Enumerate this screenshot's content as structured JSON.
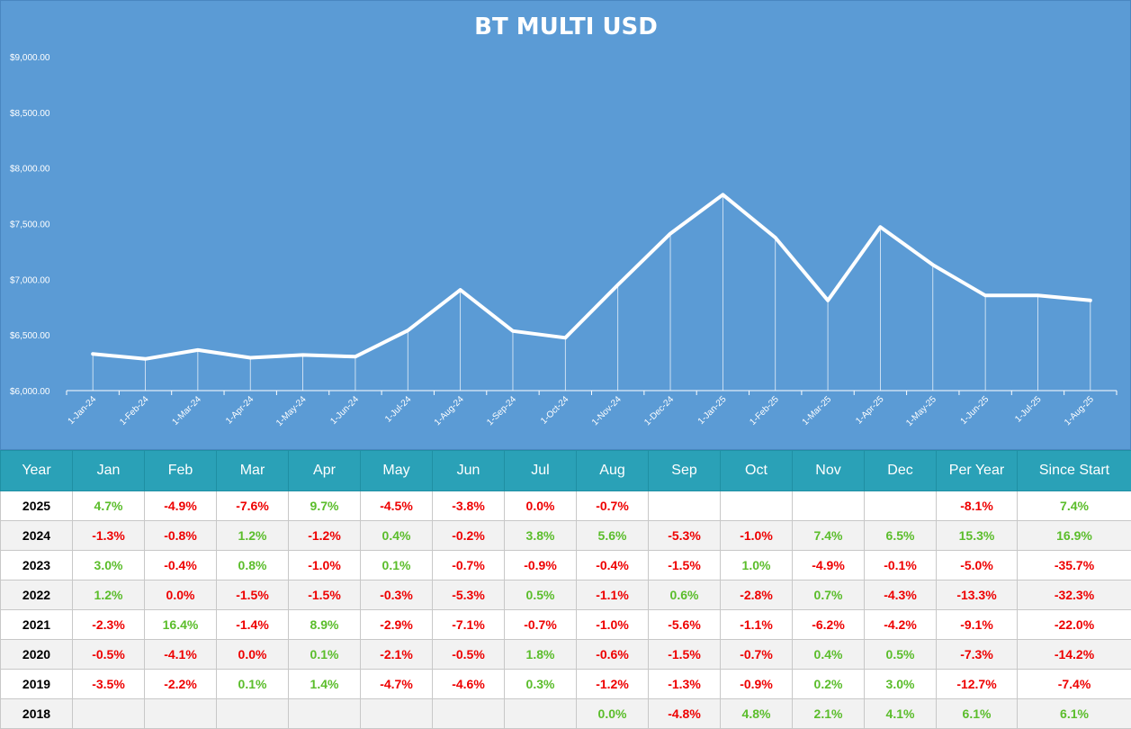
{
  "colors": {
    "panel_background": "#5b9bd5",
    "line": "#ffffff",
    "header_background": "#2aa1b7",
    "positive": "#5bbd2b",
    "negative": "#ee0000"
  },
  "chart_data": {
    "type": "line",
    "title": "BT MULTI USD",
    "xlabel": "",
    "ylabel": "",
    "ylim": [
      6000,
      9000
    ],
    "yticks": [
      "$6,000.00",
      "$6,500.00",
      "$7,000.00",
      "$7,500.00",
      "$8,000.00",
      "$8,500.00",
      "$9,000.00"
    ],
    "ytick_values": [
      6000,
      6500,
      7000,
      7500,
      8000,
      8500,
      9000
    ],
    "x": [
      "1-Jan-24",
      "1-Feb-24",
      "1-Mar-24",
      "1-Apr-24",
      "1-May-24",
      "1-Jun-24",
      "1-Jul-24",
      "1-Aug-24",
      "1-Sep-24",
      "1-Oct-24",
      "1-Nov-24",
      "1-Dec-24",
      "1-Jan-25",
      "1-Feb-25",
      "1-Mar-25",
      "1-Apr-25",
      "1-May-25",
      "1-Jun-25",
      "1-Jul-25",
      "1-Aug-25"
    ],
    "values": [
      6330,
      6285,
      6365,
      6295,
      6320,
      6305,
      6540,
      6905,
      6535,
      6475,
      6950,
      7410,
      7760,
      7375,
      6810,
      7470,
      7130,
      6855,
      6855,
      6810
    ],
    "grid": false,
    "drop_lines": true
  },
  "table": {
    "headers": [
      "Year",
      "Jan",
      "Feb",
      "Mar",
      "Apr",
      "May",
      "Jun",
      "Jul",
      "Aug",
      "Sep",
      "Oct",
      "Nov",
      "Dec",
      "Per Year",
      "Since Start"
    ],
    "rows": [
      {
        "year": "2025",
        "cells": [
          "4.7%",
          "-4.9%",
          "-7.6%",
          "9.7%",
          "-4.5%",
          "-3.8%",
          "0.0%",
          "-0.7%",
          "",
          "",
          "",
          "",
          "-8.1%",
          "7.4%"
        ]
      },
      {
        "year": "2024",
        "cells": [
          "-1.3%",
          "-0.8%",
          "1.2%",
          "-1.2%",
          "0.4%",
          "-0.2%",
          "3.8%",
          "5.6%",
          "-5.3%",
          "-1.0%",
          "7.4%",
          "6.5%",
          "15.3%",
          "16.9%"
        ]
      },
      {
        "year": "2023",
        "cells": [
          "3.0%",
          "-0.4%",
          "0.8%",
          "-1.0%",
          "0.1%",
          "-0.7%",
          "-0.9%",
          "-0.4%",
          "-1.5%",
          "1.0%",
          "-4.9%",
          "-0.1%",
          "-5.0%",
          "-35.7%"
        ]
      },
      {
        "year": "2022",
        "cells": [
          "1.2%",
          "0.0%",
          "-1.5%",
          "-1.5%",
          "-0.3%",
          "-5.3%",
          "0.5%",
          "-1.1%",
          "0.6%",
          "-2.8%",
          "0.7%",
          "-4.3%",
          "-13.3%",
          "-32.3%"
        ]
      },
      {
        "year": "2021",
        "cells": [
          "-2.3%",
          "16.4%",
          "-1.4%",
          "8.9%",
          "-2.9%",
          "-7.1%",
          "-0.7%",
          "-1.0%",
          "-5.6%",
          "-1.1%",
          "-6.2%",
          "-4.2%",
          "-9.1%",
          "-22.0%"
        ]
      },
      {
        "year": "2020",
        "cells": [
          "-0.5%",
          "-4.1%",
          "0.0%",
          "0.1%",
          "-2.1%",
          "-0.5%",
          "1.8%",
          "-0.6%",
          "-1.5%",
          "-0.7%",
          "0.4%",
          "0.5%",
          "-7.3%",
          "-14.2%"
        ]
      },
      {
        "year": "2019",
        "cells": [
          "-3.5%",
          "-2.2%",
          "0.1%",
          "1.4%",
          "-4.7%",
          "-4.6%",
          "0.3%",
          "-1.2%",
          "-1.3%",
          "-0.9%",
          "0.2%",
          "3.0%",
          "-12.7%",
          "-7.4%"
        ]
      },
      {
        "year": "2018",
        "cells": [
          "",
          "",
          "",
          "",
          "",
          "",
          "",
          "0.0%",
          "-4.8%",
          "4.8%",
          "2.1%",
          "4.1%",
          "6.1%",
          "6.1%"
        ]
      }
    ],
    "positive_override": [
      "0.0%"
    ],
    "neutral_note": ""
  }
}
